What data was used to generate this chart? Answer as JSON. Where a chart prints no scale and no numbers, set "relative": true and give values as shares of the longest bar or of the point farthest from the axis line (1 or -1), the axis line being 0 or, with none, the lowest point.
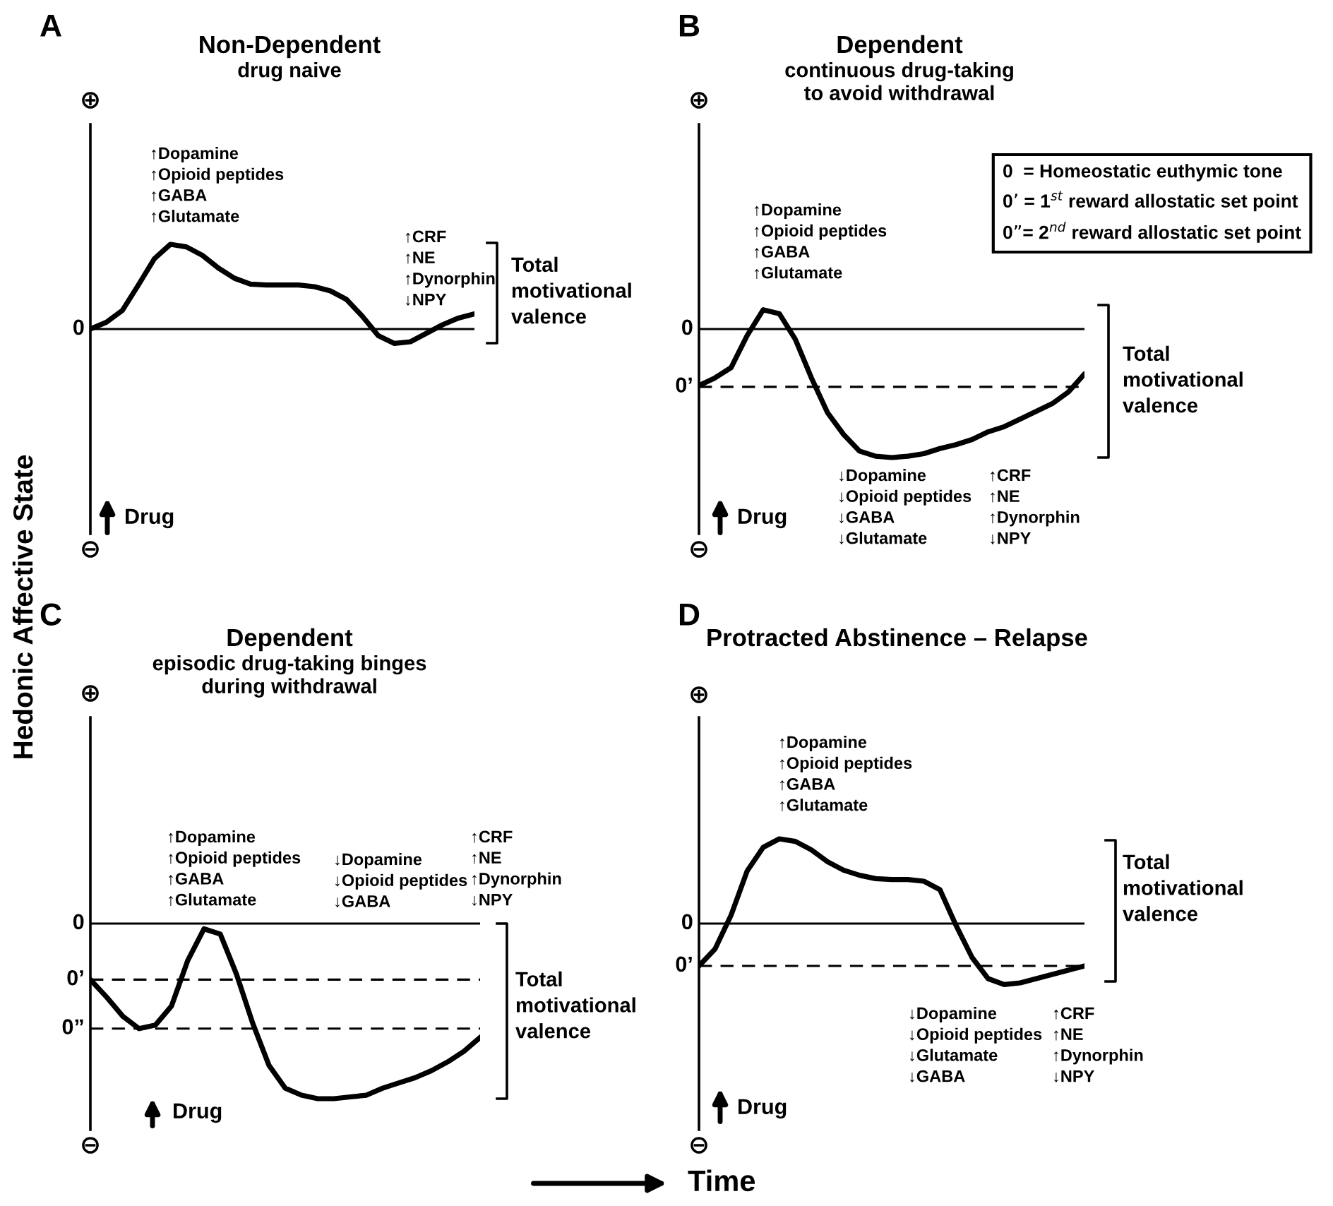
{
  "chart_data": [
    {
      "type": "line",
      "title": "Non-Dependent",
      "subtitle": "drug naive",
      "ylabel": "Hedonic Affective State",
      "relative": true,
      "tick_labels": false,
      "categories": [
        null,
        null,
        null,
        null,
        null,
        null,
        null,
        null,
        null,
        null,
        null,
        null,
        null,
        null,
        null,
        null,
        null,
        null,
        null,
        null,
        null,
        null,
        null,
        null,
        null
      ],
      "series": [
        {
          "color": "#000000",
          "values": [
            0,
            0.08,
            0.22,
            0.52,
            0.83,
            1.0,
            0.97,
            0.87,
            0.72,
            0.6,
            0.53,
            0.52,
            0.52,
            0.52,
            0.5,
            0.45,
            0.35,
            0.15,
            -0.08,
            -0.17,
            -0.15,
            -0.05,
            0.05,
            0.13,
            0.18
          ]
        }
      ],
      "ref_lines": [
        {
          "axis": "y",
          "value": 0,
          "label": "0",
          "line_style": "solid"
        }
      ],
      "annotations": [
        "A",
        "⊕",
        "⊖",
        "Drug",
        "↑Dopamine\n↑Opioid peptides\n↑GABA\n↑Glutamate",
        "↑CRF\n↑NE\n↑Dynorphin\n↓NPY",
        "Total\nmotivational\nvalence"
      ]
    },
    {
      "type": "line",
      "title": "Dependent",
      "subtitle": "continuous drug-taking\nto avoid withdrawal",
      "relative": true,
      "tick_labels": false,
      "categories": [
        null,
        null,
        null,
        null,
        null,
        null,
        null,
        null,
        null,
        null,
        null,
        null,
        null,
        null,
        null,
        null,
        null,
        null,
        null,
        null,
        null,
        null,
        null,
        null,
        null
      ],
      "series": [
        {
          "color": "#000000",
          "values": [
            -0.44,
            -0.38,
            -0.3,
            -0.05,
            0.15,
            0.12,
            -0.08,
            -0.38,
            -0.65,
            -0.82,
            -0.95,
            -0.99,
            -1.0,
            -0.99,
            -0.97,
            -0.93,
            -0.9,
            -0.86,
            -0.8,
            -0.76,
            -0.7,
            -0.64,
            -0.58,
            -0.49,
            -0.35
          ]
        }
      ],
      "ref_lines": [
        {
          "axis": "y",
          "value": 0,
          "label": "0",
          "line_style": "solid"
        },
        {
          "axis": "y",
          "value": -0.45,
          "label": "0’",
          "line_style": "dashed"
        }
      ],
      "annotations": [
        "B",
        "⊕",
        "⊖",
        "Drug",
        "0  = Homeostatic euthymic tone\n0’ = 1$^{st}$ reward allostatic set point\n0”= 2$^{nd}$ reward allostatic set point",
        "↑Dopamine\n↑Opioid peptides\n↑GABA\n↑Glutamate",
        "↓Dopamine\n↓Opioid peptides\n↓GABA\n↓Glutamate",
        "↑CRF\n↑NE\n↑Dynorphin\n↓NPY",
        "Total\nmotivational\nvalence"
      ]
    },
    {
      "type": "line",
      "title": "Dependent",
      "subtitle": "episodic drug-taking binges\nduring withdrawal",
      "relative": true,
      "tick_labels": false,
      "categories": [
        null,
        null,
        null,
        null,
        null,
        null,
        null,
        null,
        null,
        null,
        null,
        null,
        null,
        null,
        null,
        null,
        null,
        null,
        null,
        null,
        null,
        null,
        null,
        null,
        null
      ],
      "series": [
        {
          "color": "#000000",
          "values": [
            -0.32,
            -0.42,
            -0.53,
            -0.6,
            -0.58,
            -0.47,
            -0.21,
            -0.03,
            -0.06,
            -0.29,
            -0.57,
            -0.81,
            -0.94,
            -0.98,
            -1.0,
            -1.0,
            -0.99,
            -0.98,
            -0.94,
            -0.91,
            -0.88,
            -0.84,
            -0.79,
            -0.73,
            -0.65
          ]
        }
      ],
      "ref_lines": [
        {
          "axis": "y",
          "value": 0,
          "label": "0",
          "line_style": "solid"
        },
        {
          "axis": "y",
          "value": -0.32,
          "label": "0’",
          "line_style": "dashed"
        },
        {
          "axis": "y",
          "value": -0.6,
          "label": "0”",
          "line_style": "dashed"
        }
      ],
      "annotations": [
        "C",
        "⊕",
        "⊖",
        "Drug",
        "↑Dopamine\n↑Opioid peptides\n↑GABA\n↑Glutamate",
        "↓Dopamine\n↓Opioid peptides\n↓GABA",
        "↑CRF\n↑NE\n↑Dynorphin\n↓NPY",
        "Total\nmotivational\nvalence"
      ]
    },
    {
      "type": "line",
      "title": "Protracted Abstinence – Relapse",
      "xlabel": "Time",
      "relative": true,
      "tick_labels": false,
      "categories": [
        null,
        null,
        null,
        null,
        null,
        null,
        null,
        null,
        null,
        null,
        null,
        null,
        null,
        null,
        null,
        null,
        null,
        null,
        null,
        null,
        null,
        null,
        null,
        null,
        null
      ],
      "series": [
        {
          "color": "#000000",
          "values": [
            -0.5,
            -0.3,
            0.1,
            0.62,
            0.9,
            1.0,
            0.97,
            0.87,
            0.73,
            0.63,
            0.57,
            0.53,
            0.52,
            0.52,
            0.5,
            0.4,
            -0.02,
            -0.4,
            -0.65,
            -0.72,
            -0.7,
            -0.65,
            -0.6,
            -0.55,
            -0.5
          ]
        }
      ],
      "ref_lines": [
        {
          "axis": "y",
          "value": 0,
          "label": "0",
          "line_style": "solid"
        },
        {
          "axis": "y",
          "value": -0.5,
          "label": "0’",
          "line_style": "dashed"
        }
      ],
      "annotations": [
        "D",
        "⊕",
        "⊖",
        "Drug",
        "↑Dopamine\n↑Opioid peptides\n↑GABA\n↑Glutamate",
        "↓Dopamine\n↓Opioid peptides\n↓Glutamate\n↓GABA",
        "↑CRF\n↑NE\n↑Dynorphin\n↓NPY",
        "Total\nmotivational\nvalence"
      ]
    }
  ]
}
